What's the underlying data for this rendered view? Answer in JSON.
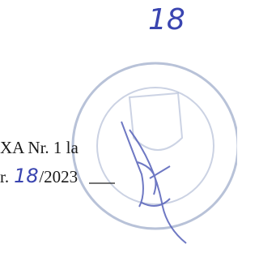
{
  "top_mark": "18",
  "annex": {
    "line1": "XA Nr. 1 la",
    "line2_prefix": "r.",
    "number": "18",
    "line2_suffix": "/2023"
  }
}
